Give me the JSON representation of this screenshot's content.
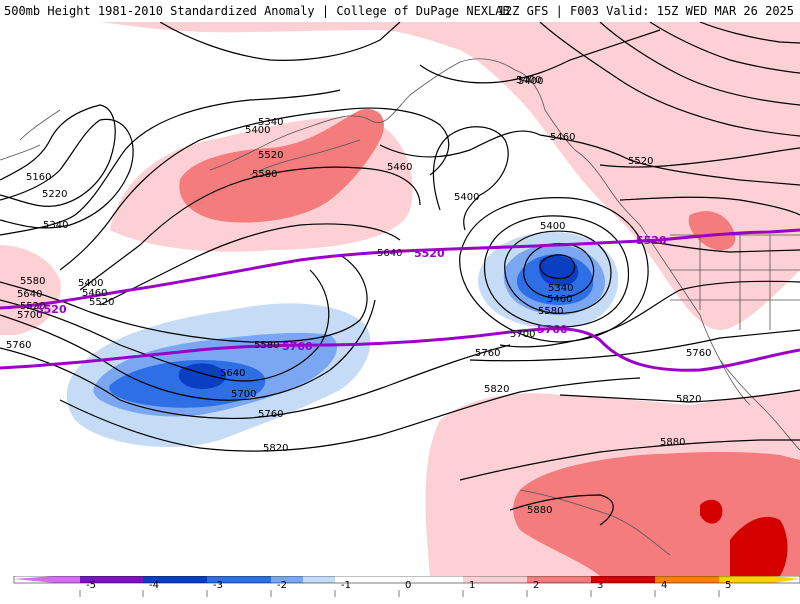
{
  "header": {
    "title_left": "500mb Height 1981-2010 Standardized Anomaly | College of DuPage NEXLAB",
    "title_right": "12Z GFS | F003 Valid: 15Z WED MAR 26 2025"
  },
  "colors": {
    "neg5": "#d36ef2",
    "neg4": "#7d12c4",
    "neg3": "#0a3fc4",
    "neg2": "#2e6fe6",
    "neg1a": "#7ba7f2",
    "neg1b": "#c6dcf6",
    "pos1": "#fcd0d4",
    "pos2": "#f47c7c",
    "pos3": "#d40000",
    "pos4": "#ff7f00",
    "pos5": "#ffd000",
    "thick_contour": "#9b00c9",
    "contour": "#000000",
    "border": "#555555"
  },
  "contour_labels": [
    "5340",
    "5400",
    "5160",
    "5220",
    "5340",
    "5400",
    "5460",
    "5520",
    "5520",
    "5580",
    "5460",
    "5400",
    "5400",
    "5640",
    "5520",
    "5580",
    "5640",
    "5700",
    "5760",
    "5580",
    "5640",
    "5700",
    "5760",
    "5820",
    "5400",
    "5340",
    "5460",
    "5580",
    "5700",
    "5760",
    "5820",
    "5460",
    "5520",
    "5880",
    "5760",
    "5820",
    "5880",
    "5400"
  ],
  "thick_labels": [
    "5520",
    "5520",
    "5520",
    "5760",
    "5760"
  ],
  "colorbar": {
    "ticks": [
      "-5",
      "-4",
      "-3",
      "-2",
      "-1",
      "0",
      "1",
      "2",
      "3",
      "4",
      "5"
    ]
  }
}
